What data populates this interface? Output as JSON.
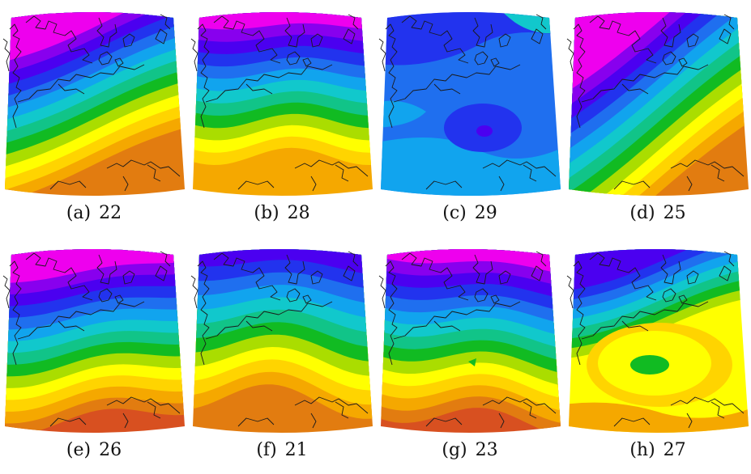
{
  "palette": [
    "#e0ff40",
    "#c6f",
    "#9f"
  ],
  "colors": {
    "magenta": "#ee00ee",
    "violet": "#8800ee",
    "indigo": "#4b00f0",
    "blue": "#2233ee",
    "mid_blue": "#1f6fef",
    "sky": "#11a4ee",
    "teal": "#11c8cc",
    "green_teal": "#11c488",
    "green": "#11bb22",
    "yellow_green": "#aadd00",
    "yellow": "#ffff00",
    "gold": "#ffd400",
    "orange": "#f5a800",
    "dark_orange": "#e27c10",
    "red_orange": "#d85020"
  },
  "panels": [
    {
      "label": "(a)",
      "number": "22",
      "variant": "a"
    },
    {
      "label": "(b)",
      "number": "28",
      "variant": "b"
    },
    {
      "label": "(c)",
      "number": "29",
      "variant": "c"
    },
    {
      "label": "(d)",
      "number": "25",
      "variant": "d"
    },
    {
      "label": "(e)",
      "number": "26",
      "variant": "e"
    },
    {
      "label": "(f)",
      "number": "21",
      "variant": "f"
    },
    {
      "label": "(g)",
      "number": "23",
      "variant": "g"
    },
    {
      "label": "(h)",
      "number": "27",
      "variant": "h"
    }
  ]
}
